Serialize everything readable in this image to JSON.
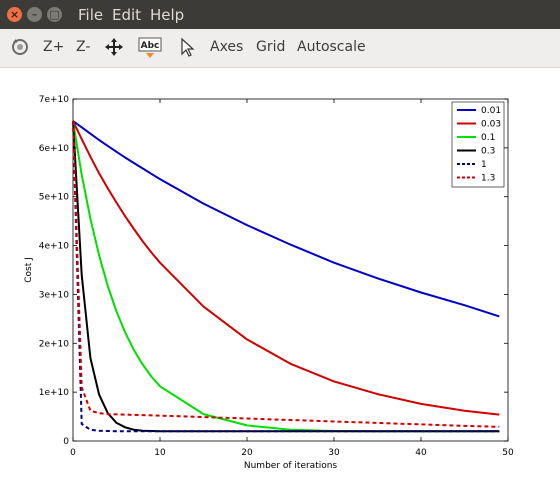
{
  "window": {
    "buttons": {
      "close": "×",
      "minimize": "–",
      "maximize": "□"
    },
    "menu": [
      "File",
      "Edit",
      "Help"
    ]
  },
  "toolbar": {
    "zoom_in": "Z+",
    "zoom_out": "Z-",
    "axes": "Axes",
    "grid": "Grid",
    "autoscale": "Autoscale",
    "icons": [
      "rotate-icon",
      "pan-icon",
      "text-annotation-icon",
      "pointer-icon"
    ],
    "text_icon_label": "Abc"
  },
  "chart_data": {
    "type": "line",
    "title": "",
    "xlabel": "Number of iterations",
    "ylabel": "Cost J",
    "xlim": [
      0,
      50
    ],
    "ylim": [
      0,
      70000000000
    ],
    "xticks": [
      "0",
      "10",
      "20",
      "30",
      "40",
      "50"
    ],
    "yticks": [
      "0",
      "1e+10",
      "2e+10",
      "3e+10",
      "4e+10",
      "5e+10",
      "6e+10",
      "7e+10"
    ],
    "grid": false,
    "legend_position": "top-right",
    "x": [
      0,
      1,
      2,
      3,
      4,
      5,
      6,
      7,
      8,
      9,
      10,
      15,
      20,
      25,
      30,
      35,
      40,
      45,
      49
    ],
    "series": [
      {
        "name": "0.01",
        "color": "#0000c8",
        "dash": "solid",
        "values": [
          65500000000,
          64200000000,
          62900000000,
          61600000000,
          60400000000,
          59200000000,
          58000000000,
          56900000000,
          55800000000,
          54700000000,
          53600000000,
          48600000000,
          44200000000,
          40200000000,
          36500000000,
          33300000000,
          30400000000,
          27800000000,
          25500000000
        ]
      },
      {
        "name": "0.03",
        "color": "#d00000",
        "dash": "solid",
        "values": [
          65500000000,
          61800000000,
          58200000000,
          54800000000,
          51700000000,
          48800000000,
          46000000000,
          43400000000,
          40900000000,
          38600000000,
          36500000000,
          27500000000,
          20800000000,
          15800000000,
          12200000000,
          9600000000,
          7600000000,
          6200000000,
          5400000000
        ]
      },
      {
        "name": "0.1",
        "color": "#00e000",
        "dash": "solid",
        "values": [
          65500000000,
          54500000000,
          45500000000,
          38000000000,
          31700000000,
          26500000000,
          22200000000,
          18600000000,
          15700000000,
          13200000000,
          11200000000,
          5500000000,
          3200000000,
          2300000000,
          2050000000,
          2000000000,
          2000000000,
          2000000000,
          2000000000
        ]
      },
      {
        "name": "0.3",
        "color": "#000000",
        "dash": "solid",
        "values": [
          65500000000,
          34000000000,
          17000000000,
          9500000000,
          5700000000,
          3700000000,
          2800000000,
          2300000000,
          2100000000,
          2050000000,
          2000000000,
          2000000000,
          2000000000,
          2000000000,
          2000000000,
          2000000000,
          2000000000,
          2000000000,
          2000000000
        ]
      },
      {
        "name": "1",
        "color": "#000080",
        "dash": "dashed",
        "values": [
          65500000000,
          3500000000,
          2300000000,
          2100000000,
          2050000000,
          2000000000,
          2000000000,
          2000000000,
          2000000000,
          2000000000,
          2000000000,
          2000000000,
          2000000000,
          2000000000,
          2000000000,
          2000000000,
          2000000000,
          2000000000,
          2000000000
        ]
      },
      {
        "name": "1.3",
        "color": "#d00000",
        "dash": "dashed",
        "values": [
          65500000000,
          11000000000,
          6200000000,
          5700000000,
          5500000000,
          5450000000,
          5400000000,
          5350000000,
          5300000000,
          5250000000,
          5200000000,
          4900000000,
          4600000000,
          4300000000,
          4000000000,
          3700000000,
          3400000000,
          3100000000,
          2900000000
        ]
      }
    ]
  }
}
